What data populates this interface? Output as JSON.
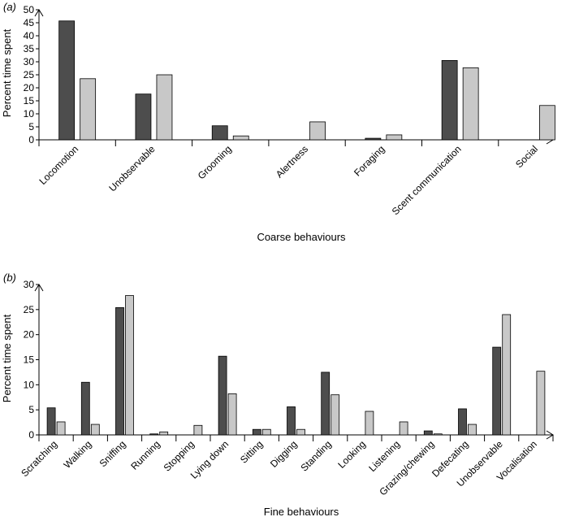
{
  "colors": {
    "series_a": "#4d4d4d",
    "series_b": "#c8c8c8",
    "axis": "#000000"
  },
  "chart_data": [
    {
      "type": "bar",
      "panel_label": "(a)",
      "xlabel": "Coarse behaviours",
      "ylabel": "Percent time spent",
      "ylim": [
        0,
        50
      ],
      "yticks": [
        0,
        5,
        10,
        15,
        20,
        25,
        30,
        35,
        40,
        45,
        50
      ],
      "grid": false,
      "legend": "none",
      "categories": [
        "Locomotion",
        "Unobservable",
        "Grooming",
        "Alertness",
        "Foraging",
        "Scent communication",
        "Social"
      ],
      "series": [
        {
          "values": [
            45.7,
            17.6,
            5.4,
            0,
            0.6,
            30.5,
            0
          ]
        },
        {
          "values": [
            23.5,
            25.0,
            1.5,
            6.9,
            1.9,
            27.7,
            13.2
          ]
        }
      ]
    },
    {
      "type": "bar",
      "panel_label": "(b)",
      "xlabel": "Fine behaviours",
      "ylabel": "Percent time spent",
      "ylim": [
        0,
        30
      ],
      "yticks": [
        0,
        5,
        10,
        15,
        20,
        25,
        30
      ],
      "grid": false,
      "legend": "none",
      "categories": [
        "Scratching",
        "Walking",
        "Sniffing",
        "Running",
        "Stopping",
        "Lying down",
        "Sitting",
        "Digging",
        "Standing",
        "Looking",
        "Listening",
        "Grazing/chewing",
        "Defecating",
        "Unobservable",
        "Vocalisation"
      ],
      "series": [
        {
          "values": [
            5.4,
            10.5,
            25.4,
            0.2,
            0,
            15.7,
            1.1,
            5.6,
            12.5,
            0,
            0,
            0.8,
            5.2,
            17.5,
            0
          ]
        },
        {
          "values": [
            2.6,
            2.1,
            27.8,
            0.6,
            1.9,
            8.2,
            1.1,
            1.1,
            8.0,
            4.7,
            2.6,
            0.2,
            2.1,
            24.0,
            12.7
          ]
        }
      ]
    }
  ]
}
